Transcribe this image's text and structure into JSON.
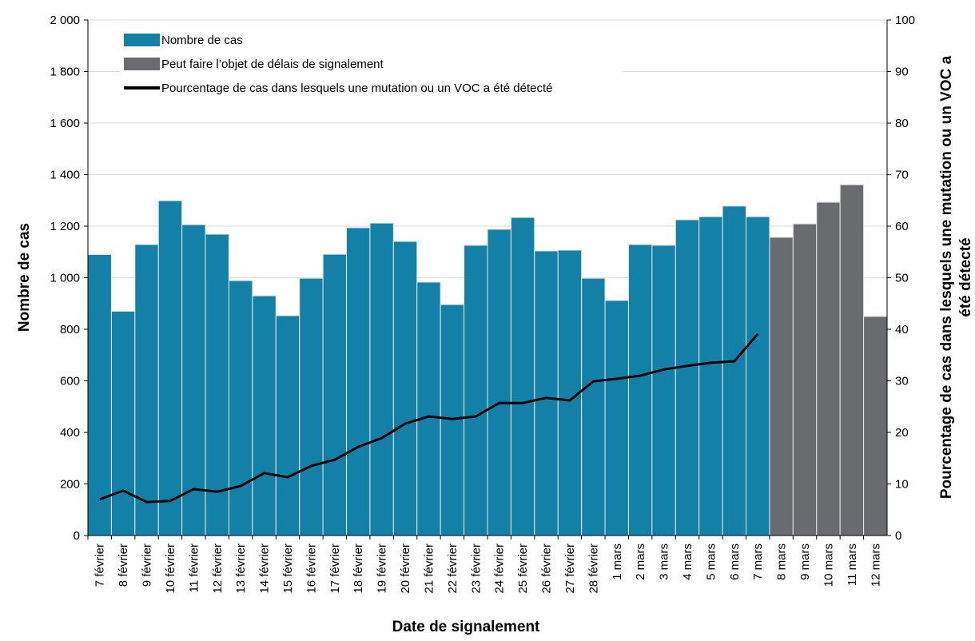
{
  "chart_data": {
    "type": "bar-line",
    "categories": [
      "7 février",
      "8 février",
      "9 février",
      "10 février",
      "11 février",
      "12 février",
      "13 février",
      "14 février",
      "15 février",
      "16 février",
      "17 février",
      "18 février",
      "19 février",
      "20 février",
      "21 février",
      "22 février",
      "23 février",
      "24 février",
      "25 février",
      "26 février",
      "27 février",
      "28 février",
      "1 mars",
      "2 mars",
      "3 mars",
      "4 mars",
      "5 mars",
      "6 mars",
      "7 mars",
      "8 mars",
      "9 mars",
      "10 mars",
      "11 mars",
      "12 mars"
    ],
    "series": [
      {
        "name": "Nombre de cas",
        "type": "bar",
        "color": "#1380a8",
        "values": [
          1090,
          870,
          1129,
          1299,
          1206,
          1169,
          989,
          930,
          853,
          998,
          1091,
          1194,
          1212,
          1141,
          983,
          896,
          1126,
          1188,
          1234,
          1104,
          1107,
          998,
          912,
          1129,
          1126,
          1225,
          1237,
          1278,
          1237,
          null,
          null,
          null,
          null,
          null
        ]
      },
      {
        "name": "Peut faire l’objet de délais de signalement",
        "type": "bar",
        "color": "#6a6b6f",
        "values": [
          null,
          null,
          null,
          null,
          null,
          null,
          null,
          null,
          null,
          null,
          null,
          null,
          null,
          null,
          null,
          null,
          null,
          null,
          null,
          null,
          null,
          null,
          null,
          null,
          null,
          null,
          null,
          null,
          null,
          1157,
          1209,
          1293,
          1361,
          850
        ]
      },
      {
        "name": "Pourcentage de cas dans lesquels une mutation ou un VOC a été détecté",
        "type": "line",
        "axis": "y2",
        "color": "#000000",
        "values": [
          7.0,
          8.7,
          6.5,
          6.7,
          9.0,
          8.5,
          9.6,
          12.1,
          11.3,
          13.5,
          14.7,
          17.2,
          18.9,
          21.7,
          23.1,
          22.6,
          23.1,
          25.7,
          25.7,
          26.7,
          26.2,
          29.9,
          30.4,
          31.0,
          32.2,
          32.9,
          33.5,
          33.8,
          39.1,
          null,
          null,
          null,
          null,
          null
        ]
      }
    ],
    "x_label": "Date de signalement",
    "y_label": "Nombre de cas",
    "y2_label": [
      "Pourcentage de cas dans lesquels une mutation ou un VOC a",
      "été détecté"
    ],
    "ylim": [
      0,
      2000
    ],
    "yticks": [
      0,
      200,
      400,
      600,
      800,
      {
        "value": 1000,
        "label": "1 000"
      },
      {
        "value": 1200,
        "label": "1 200"
      },
      {
        "value": 1400,
        "label": "1 400"
      },
      {
        "value": 1600,
        "label": "1 600"
      },
      {
        "value": 1800,
        "label": "1 800"
      },
      {
        "value": 2000,
        "label": "2 000"
      }
    ],
    "y2lim": [
      0,
      100
    ],
    "y2ticks": [
      0,
      10,
      20,
      30,
      40,
      50,
      60,
      70,
      80,
      90,
      100
    ],
    "grid": true,
    "legend": "upper left"
  }
}
